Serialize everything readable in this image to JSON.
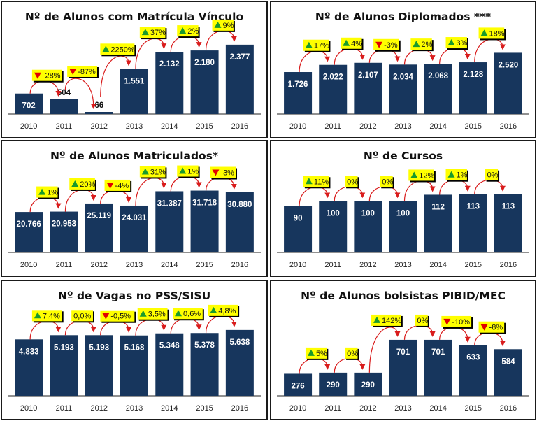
{
  "colors": {
    "bar": "#17365d",
    "badge": "#ffff00",
    "up": "#1a9a2c",
    "down": "#e00000",
    "arrow": "#d91c1c"
  },
  "chart_data": [
    {
      "type": "bar",
      "title": "Nº de Alunos com Matrícula Vínculo",
      "categories": [
        "2010",
        "2011",
        "2012",
        "2013",
        "2014",
        "2015",
        "2016"
      ],
      "values": [
        702,
        504,
        66,
        1551,
        2132,
        2180,
        2377
      ],
      "value_labels": [
        "702",
        "504",
        "66",
        "1.551",
        "2.132",
        "2.180",
        "2.377"
      ],
      "changes": [
        {
          "dir": "down",
          "label": "-28%"
        },
        {
          "dir": "down",
          "label": "-87%"
        },
        {
          "dir": "up",
          "label": "2250%"
        },
        {
          "dir": "up",
          "label": "37%"
        },
        {
          "dir": "up",
          "label": "2%"
        },
        {
          "dir": "up",
          "label": "9%"
        }
      ],
      "xlabel": "",
      "ylabel": "",
      "ylim": [
        0,
        2500
      ],
      "grid": false,
      "legend": "none"
    },
    {
      "type": "bar",
      "title": "Nº de Alunos Diplomados ***",
      "categories": [
        "2010",
        "2011",
        "2012",
        "2013",
        "2014",
        "2015",
        "2016"
      ],
      "values": [
        1726,
        2022,
        2107,
        2034,
        2068,
        2128,
        2520
      ],
      "value_labels": [
        "1.726",
        "2.022",
        "2.107",
        "2.034",
        "2.068",
        "2.128",
        "2.520"
      ],
      "changes": [
        {
          "dir": "up",
          "label": "17%"
        },
        {
          "dir": "up",
          "label": "4%"
        },
        {
          "dir": "down",
          "label": "-3%"
        },
        {
          "dir": "up",
          "label": "2%"
        },
        {
          "dir": "up",
          "label": "3%"
        },
        {
          "dir": "up",
          "label": "18%"
        }
      ],
      "xlabel": "",
      "ylabel": "",
      "ylim": [
        0,
        3000
      ],
      "grid": false,
      "legend": "none"
    },
    {
      "type": "bar",
      "title": "Nº de Alunos Matriculados*",
      "categories": [
        "2010",
        "2011",
        "2012",
        "2013",
        "2014",
        "2015",
        "2016"
      ],
      "values": [
        20766,
        20953,
        25119,
        24031,
        31387,
        31718,
        30880
      ],
      "value_labels": [
        "20.766",
        "20.953",
        "25.119",
        "24.031",
        "31.387",
        "31.718",
        "30.880"
      ],
      "changes": [
        {
          "dir": "up",
          "label": "1%"
        },
        {
          "dir": "up",
          "label": "20%"
        },
        {
          "dir": "down",
          "label": "-4%"
        },
        {
          "dir": "up",
          "label": "31%"
        },
        {
          "dir": "up",
          "label": "1%"
        },
        {
          "dir": "down",
          "label": "-3%"
        }
      ],
      "xlabel": "",
      "ylabel": "",
      "ylim": [
        0,
        37000
      ],
      "grid": false,
      "legend": "none"
    },
    {
      "type": "bar",
      "title": "Nº de Cursos",
      "categories": [
        "2010",
        "2011",
        "2012",
        "2013",
        "2014",
        "2015",
        "2016"
      ],
      "values": [
        90,
        100,
        100,
        100,
        112,
        113,
        113
      ],
      "value_labels": [
        "90",
        "100",
        "100",
        "100",
        "112",
        "113",
        "113"
      ],
      "changes": [
        {
          "dir": "up",
          "label": "11%"
        },
        {
          "dir": "none",
          "label": "0%"
        },
        {
          "dir": "none",
          "label": "0%"
        },
        {
          "dir": "up",
          "label": "12%"
        },
        {
          "dir": "up",
          "label": "1%"
        },
        {
          "dir": "none",
          "label": "0%"
        }
      ],
      "xlabel": "",
      "ylabel": "",
      "ylim": [
        0,
        140
      ],
      "grid": false,
      "legend": "none"
    },
    {
      "type": "bar",
      "title": "Nº de Vagas no PSS/SISU",
      "categories": [
        "2010",
        "2011",
        "2012",
        "2013",
        "2014",
        "2015",
        "2016"
      ],
      "values": [
        4833,
        5193,
        5193,
        5168,
        5348,
        5378,
        5638
      ],
      "value_labels": [
        "4.833",
        "5.193",
        "5.193",
        "5.168",
        "5.348",
        "5.378",
        "5.638"
      ],
      "changes": [
        {
          "dir": "up",
          "label": "7,4%"
        },
        {
          "dir": "none",
          "label": "0,0%"
        },
        {
          "dir": "down",
          "label": "-0,5%"
        },
        {
          "dir": "up",
          "label": "3,5%"
        },
        {
          "dir": "up",
          "label": "0,6%"
        },
        {
          "dir": "up",
          "label": "4,8%"
        }
      ],
      "xlabel": "",
      "ylabel": "",
      "ylim": [
        0,
        6500
      ],
      "grid": false,
      "legend": "none"
    },
    {
      "type": "bar",
      "title": "Nº de Alunos bolsistas PIBID/MEC",
      "categories": [
        "2010",
        "2011",
        "2012",
        "2013",
        "2014",
        "2015",
        "2016"
      ],
      "values": [
        276,
        290,
        290,
        701,
        701,
        633,
        584
      ],
      "value_labels": [
        "276",
        "290",
        "290",
        "701",
        "701",
        "633",
        "584"
      ],
      "changes": [
        {
          "dir": "up",
          "label": "5%"
        },
        {
          "dir": "none",
          "label": "0%"
        },
        {
          "dir": "up",
          "label": "142%"
        },
        {
          "dir": "none",
          "label": "0%"
        },
        {
          "dir": "down",
          "label": "-10%"
        },
        {
          "dir": "down",
          "label": "-8%"
        }
      ],
      "xlabel": "",
      "ylabel": "",
      "ylim": [
        0,
        950
      ],
      "grid": false,
      "legend": "none"
    }
  ]
}
